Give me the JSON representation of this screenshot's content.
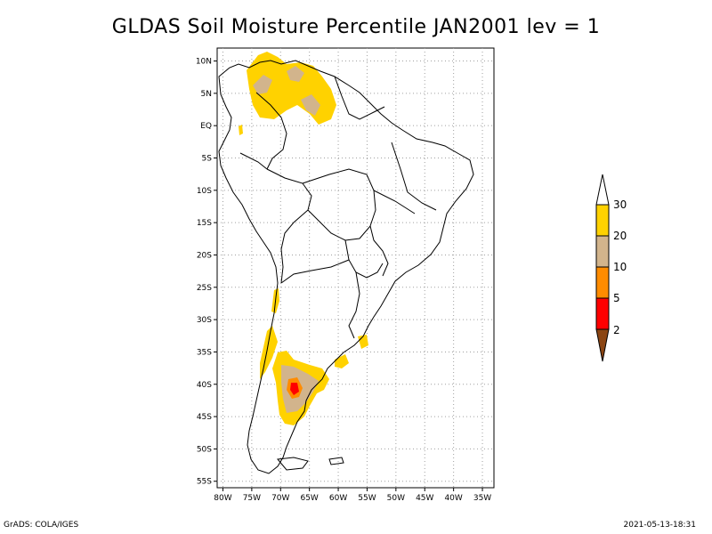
{
  "title": "GLDAS Soil Moisture Percentile JAN2001 lev = 1",
  "footer_left": "GrADS: COLA/IGES",
  "footer_right": "2021-05-13-18:31",
  "axes": {
    "lat_labels": [
      "10N",
      "5N",
      "EQ",
      "5S",
      "10S",
      "15S",
      "20S",
      "25S",
      "30S",
      "35S",
      "40S",
      "45S",
      "50S",
      "55S"
    ],
    "lon_labels": [
      "80W",
      "75W",
      "70W",
      "65W",
      "60W",
      "55W",
      "50W",
      "45W",
      "40W",
      "35W"
    ],
    "lat_range": [
      -56,
      12
    ],
    "lon_range": [
      -81,
      -33
    ]
  },
  "legend": {
    "labels": [
      "30",
      "20",
      "10",
      "5",
      "2"
    ],
    "colors": [
      "#ffd200",
      "#d2b48c",
      "#ff8c00",
      "#ff0000",
      "#8b4513"
    ]
  },
  "colors": {
    "p30": "#ffd200",
    "p20": "#d2b48c",
    "p10": "#ff8c00",
    "p5": "#ff0000",
    "p2": "#8b4513",
    "coast": "#000000",
    "grid": "#a0a0a0"
  }
}
